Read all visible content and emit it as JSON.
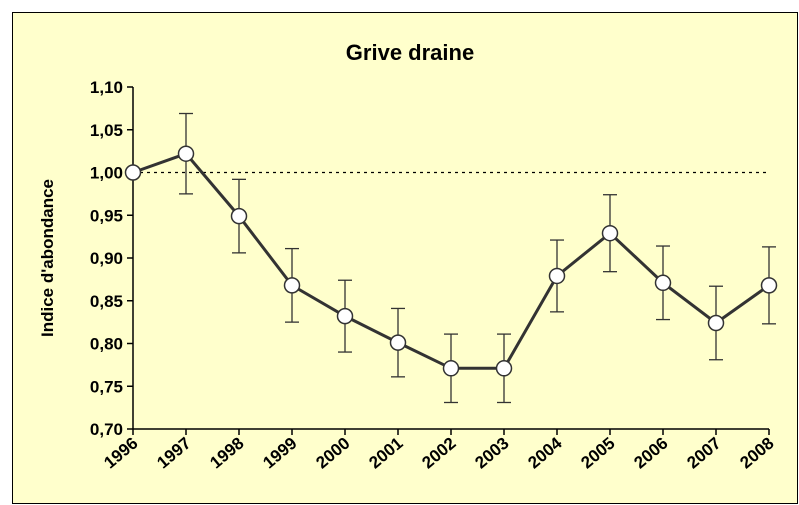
{
  "chart_data": {
    "type": "line",
    "title": "Grive draine",
    "y_label": "Indice d'abondance",
    "categories": [
      "1996",
      "1997",
      "1998",
      "1999",
      "2000",
      "2001",
      "2002",
      "2003",
      "2004",
      "2005",
      "2006",
      "2007",
      "2008"
    ],
    "series": [
      {
        "name": "Grive draine",
        "color": "#333333",
        "values": [
          1.0,
          1.022,
          0.949,
          0.868,
          0.832,
          0.801,
          0.771,
          0.771,
          0.879,
          0.929,
          0.871,
          0.824,
          0.868
        ],
        "errors": [
          null,
          0.047,
          0.043,
          0.043,
          0.042,
          0.04,
          0.04,
          0.04,
          0.042,
          0.045,
          0.043,
          0.043,
          0.045
        ]
      }
    ],
    "ylim": [
      0.7,
      1.1
    ],
    "yticks": [
      {
        "value": 0.7,
        "label": "0,70"
      },
      {
        "value": 0.75,
        "label": "0,75"
      },
      {
        "value": 0.8,
        "label": "0,80"
      },
      {
        "value": 0.85,
        "label": "0,85"
      },
      {
        "value": 0.9,
        "label": "0,90"
      },
      {
        "value": 0.95,
        "label": "0,95"
      },
      {
        "value": 1.0,
        "label": "1,00"
      },
      {
        "value": 1.05,
        "label": "1,05"
      },
      {
        "value": 1.1,
        "label": "1,10"
      }
    ],
    "reference_line": 1.0,
    "background": "#ffffcc"
  }
}
